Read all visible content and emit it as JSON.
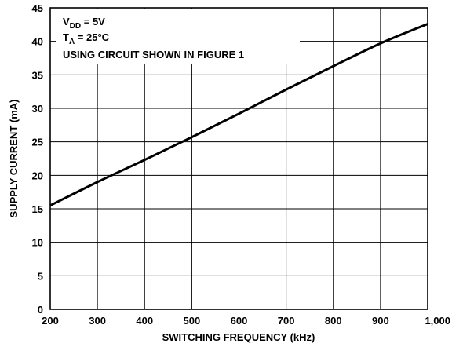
{
  "chart_data": {
    "type": "line",
    "title": "",
    "xlabel": "SWITCHING FREQUENCY (kHz)",
    "ylabel": "SUPPLY CURRENT (mA)",
    "xlim": [
      200,
      1000
    ],
    "ylim": [
      0,
      45
    ],
    "grid": true,
    "x_ticks": [
      200,
      300,
      400,
      500,
      600,
      700,
      800,
      900,
      1000
    ],
    "x_tick_labels": [
      "200",
      "300",
      "400",
      "500",
      "600",
      "700",
      "800",
      "900",
      "1,000"
    ],
    "y_ticks": [
      0,
      5,
      10,
      15,
      20,
      25,
      30,
      35,
      40,
      45
    ],
    "y_tick_labels": [
      "0",
      "5",
      "10",
      "15",
      "20",
      "25",
      "30",
      "35",
      "40",
      "45"
    ],
    "annotations": {
      "vdd_main": "V",
      "vdd_sub": "DD",
      "vdd_value": " = 5V",
      "ta_main": "T",
      "ta_sub": "A",
      "ta_value": " = 25°C",
      "circuit": "USING CIRCUIT SHOWN IN FIGURE 1"
    },
    "series": [
      {
        "x": [
          200,
          300,
          400,
          500,
          600,
          700,
          800,
          900,
          1000
        ],
        "y": [
          15.5,
          19.0,
          22.3,
          25.7,
          29.2,
          32.8,
          36.3,
          39.7,
          42.6
        ]
      }
    ]
  }
}
